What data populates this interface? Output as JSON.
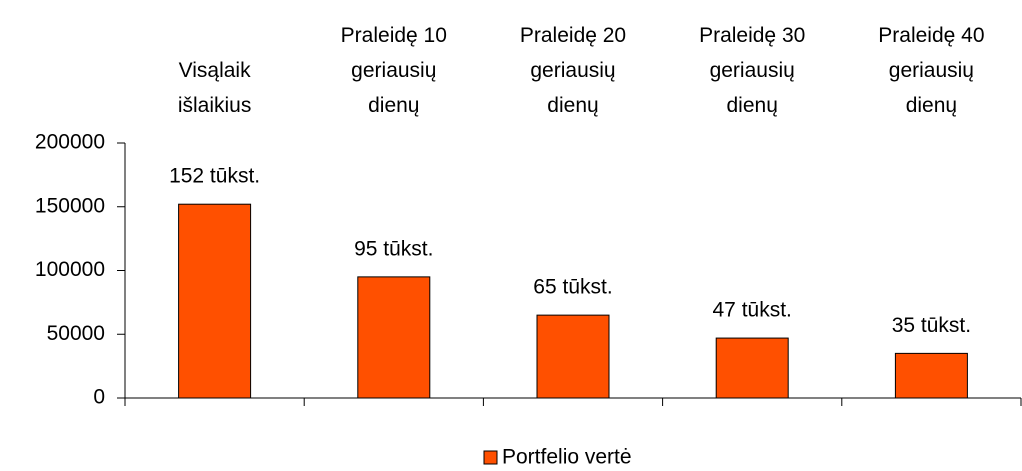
{
  "chart_data": {
    "type": "bar",
    "categories": [
      "Visąlaik\nišlaikius",
      "Praleidę 10\ngeriausių\ndienų",
      "Praleidę 20\ngeriausių\ndienų",
      "Praleidę 30\ngeriausių\ndienų",
      "Praleidę 40\ngeriausių\ndienų"
    ],
    "series": [
      {
        "name": "Portfelio vertė",
        "color": "#ff5000",
        "values": [
          152000,
          95000,
          65000,
          47000,
          35000
        ],
        "value_labels": [
          "152 tūkst.",
          "95 tūkst.",
          "65 tūkst.",
          "47 tūkst.",
          "35 tūkst."
        ]
      }
    ],
    "ylim": [
      0,
      200000
    ],
    "yticks": [
      0,
      50000,
      100000,
      150000,
      200000
    ],
    "grid": false,
    "legend": "bottom"
  }
}
